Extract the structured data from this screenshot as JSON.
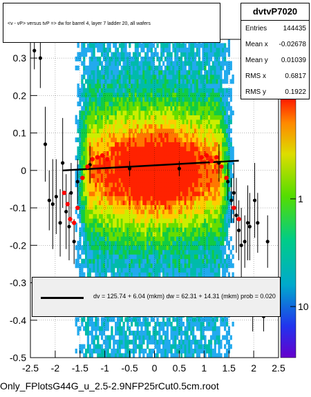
{
  "title": "<v - vP>       versus  tvP =>  dw for barrel 4, layer 7 ladder 20, all wafers",
  "stats": {
    "name": "dvtvP7020",
    "rows": [
      {
        "label": "Entries",
        "value": "144435"
      },
      {
        "label": "Mean x",
        "value": "-0.02678"
      },
      {
        "label": "Mean y",
        "value": "0.01039"
      },
      {
        "label": "RMS x",
        "value": "0.6817"
      },
      {
        "label": "RMS y",
        "value": "0.1922"
      }
    ]
  },
  "fit_text": "dv =  125.74 +  6.04 (mkm) dw =   62.31 + 14.31 (mkm) prob = 0.020",
  "footer": "Only_FPlotsG44G_u_2.5-2.9NFP25rCut0.5cm.root",
  "colors": {
    "background": "#ffffff",
    "red_points": "#ff0000",
    "black_points": "#000000"
  },
  "chart_data": {
    "type": "heatmap",
    "xlim": [
      -2.5,
      2.5
    ],
    "ylim": [
      -0.5,
      0.35
    ],
    "x_ticks": [
      "-2.5",
      "-2",
      "-1.5",
      "-1",
      "-0.5",
      "0",
      "0.5",
      "1",
      "1.5",
      "2",
      "2.5"
    ],
    "y_ticks": [
      "-0.5",
      "-0.4",
      "-0.3",
      "-0.2",
      "-0.1",
      "0",
      "0.1",
      "0.2",
      "0.3"
    ],
    "colorbar_ticks": [
      "1",
      "10"
    ],
    "colorbar_scale": "log",
    "band_x_range": [
      -1.6,
      1.6
    ],
    "fit_line": {
      "x": [
        -1.85,
        1.7
      ],
      "y": [
        0.0,
        0.026
      ]
    },
    "profile_red": [
      {
        "x": -1.82,
        "y": -0.06
      },
      {
        "x": -1.75,
        "y": -0.09
      },
      {
        "x": -1.7,
        "y": -0.13
      },
      {
        "x": -1.62,
        "y": -0.14
      },
      {
        "x": -1.55,
        "y": -0.1
      },
      {
        "x": -1.45,
        "y": -0.02
      },
      {
        "x": -1.35,
        "y": 0.01
      },
      {
        "x": -1.25,
        "y": 0.03
      },
      {
        "x": -1.15,
        "y": 0.035
      },
      {
        "x": -1.05,
        "y": 0.04
      },
      {
        "x": -0.95,
        "y": 0.03
      },
      {
        "x": 0.95,
        "y": 0.035
      },
      {
        "x": 1.05,
        "y": 0.04
      },
      {
        "x": 1.15,
        "y": 0.025
      },
      {
        "x": 1.25,
        "y": 0.035
      },
      {
        "x": 1.35,
        "y": 0.01
      },
      {
        "x": 1.45,
        "y": -0.02
      },
      {
        "x": 1.6,
        "y": -0.1
      },
      {
        "x": 1.7,
        "y": -0.13
      }
    ],
    "profile_black": [
      {
        "x": -2.42,
        "y": 0.32,
        "err": 0.05
      },
      {
        "x": -2.3,
        "y": 0.3,
        "err": 0.08
      },
      {
        "x": -2.2,
        "y": 0.07,
        "err": 0.1
      },
      {
        "x": -2.12,
        "y": -0.08,
        "err": 0.08
      },
      {
        "x": -2.05,
        "y": -0.09,
        "err": 0.12
      },
      {
        "x": -1.98,
        "y": -0.07,
        "err": 0.1
      },
      {
        "x": -1.9,
        "y": -0.14,
        "err": 0.09
      },
      {
        "x": -1.85,
        "y": 0.02,
        "err": 0.12
      },
      {
        "x": -1.78,
        "y": -0.11,
        "err": 0.1
      },
      {
        "x": -1.72,
        "y": -0.15,
        "err": 0.09
      },
      {
        "x": -1.68,
        "y": -0.06,
        "err": 0.08
      },
      {
        "x": -1.62,
        "y": -0.19,
        "err": 0.06
      },
      {
        "x": -1.55,
        "y": -0.03,
        "err": 0.06
      },
      {
        "x": -1.3,
        "y": 0.015,
        "err": 0.05
      },
      {
        "x": -0.5,
        "y": 0.005,
        "err": 0.02
      },
      {
        "x": 0.5,
        "y": 0.005,
        "err": 0.02
      },
      {
        "x": 1.3,
        "y": 0.02,
        "err": 0.05
      },
      {
        "x": 1.48,
        "y": -0.03,
        "err": 0.05
      },
      {
        "x": 1.55,
        "y": -0.08,
        "err": 0.06
      },
      {
        "x": 1.6,
        "y": -0.06,
        "err": 0.08
      },
      {
        "x": 1.65,
        "y": -0.12,
        "err": 0.1
      },
      {
        "x": 1.7,
        "y": -0.16,
        "err": 0.08
      },
      {
        "x": 1.75,
        "y": -0.2,
        "err": 0.1
      },
      {
        "x": 1.82,
        "y": -0.19,
        "err": 0.07
      },
      {
        "x": 1.88,
        "y": -0.14,
        "err": 0.1
      },
      {
        "x": 1.92,
        "y": -0.15,
        "err": 0.09
      },
      {
        "x": 1.98,
        "y": -0.38,
        "err": 0.05
      },
      {
        "x": 2.02,
        "y": -0.08,
        "err": 0.1
      },
      {
        "x": 2.08,
        "y": -0.14,
        "err": 0.08
      },
      {
        "x": 2.2,
        "y": -0.39,
        "err": 0.04
      },
      {
        "x": 2.28,
        "y": -0.19,
        "err": 0.07
      }
    ]
  }
}
